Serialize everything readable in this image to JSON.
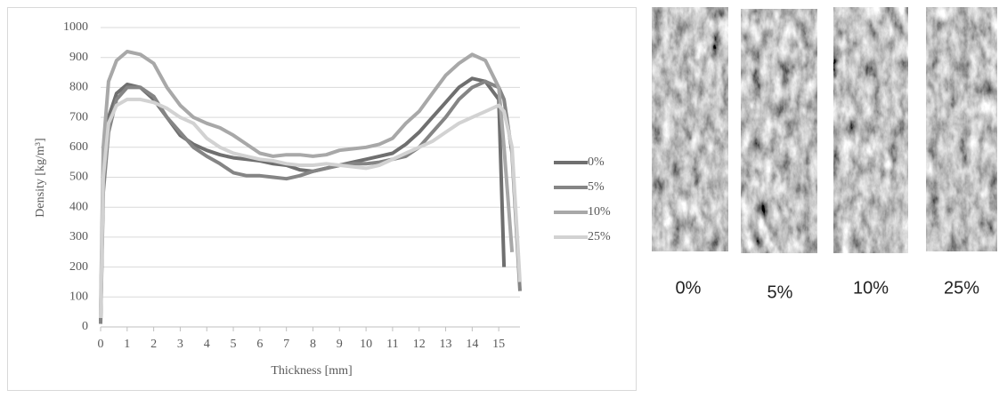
{
  "chart_data": {
    "type": "line",
    "y_label": "Density [kg/m³]",
    "x_label": "Thickness [mm]",
    "x": [
      0,
      0.1,
      0.3,
      0.6,
      1,
      1.5,
      2,
      2.5,
      3,
      3.5,
      4,
      4.5,
      5,
      5.5,
      6,
      6.5,
      7,
      7.5,
      8,
      8.5,
      9,
      9.5,
      10,
      10.5,
      11,
      11.5,
      12,
      12.5,
      13,
      13.5,
      14,
      14.5,
      15,
      15.2,
      15.5,
      15.8
    ],
    "series": [
      {
        "name": "0%",
        "color": "#6f6f6f",
        "values": [
          20,
          500,
          700,
          780,
          810,
          800,
          760,
          700,
          640,
          610,
          590,
          575,
          565,
          560,
          555,
          545,
          540,
          525,
          520,
          530,
          540,
          550,
          560,
          570,
          580,
          610,
          650,
          700,
          750,
          800,
          830,
          820,
          760,
          200,
          null,
          null
        ]
      },
      {
        "name": "5%",
        "color": "#858585",
        "values": [
          10,
          450,
          650,
          760,
          800,
          800,
          770,
          700,
          650,
          600,
          570,
          545,
          515,
          505,
          505,
          500,
          495,
          505,
          520,
          530,
          540,
          545,
          545,
          550,
          560,
          570,
          600,
          650,
          700,
          760,
          800,
          820,
          800,
          760,
          580,
          120
        ]
      },
      {
        "name": "10%",
        "color": "#a8a8a8",
        "values": [
          50,
          600,
          820,
          890,
          920,
          910,
          880,
          800,
          740,
          700,
          680,
          665,
          640,
          610,
          580,
          570,
          575,
          575,
          570,
          575,
          590,
          595,
          600,
          610,
          630,
          680,
          720,
          780,
          840,
          880,
          910,
          890,
          800,
          600,
          250,
          null
        ]
      },
      {
        "name": "25%",
        "color": "#d2d2d2",
        "values": [
          30,
          500,
          680,
          740,
          760,
          760,
          750,
          730,
          700,
          680,
          630,
          600,
          580,
          570,
          560,
          555,
          545,
          540,
          540,
          545,
          540,
          535,
          530,
          540,
          560,
          580,
          600,
          620,
          650,
          680,
          700,
          720,
          740,
          720,
          600,
          150
        ]
      }
    ],
    "xlim": [
      0,
      15.8
    ],
    "xticks": [
      0,
      1,
      2,
      3,
      4,
      5,
      6,
      7,
      8,
      9,
      10,
      11,
      12,
      13,
      14,
      15
    ],
    "ylim": [
      0,
      1000
    ],
    "yticks": [
      0,
      100,
      200,
      300,
      400,
      500,
      600,
      700,
      800,
      900,
      1000
    ],
    "grid": true,
    "legend": "right"
  },
  "photos": [
    {
      "label": "0%"
    },
    {
      "label": "5%"
    },
    {
      "label": "10%"
    },
    {
      "label": "25%"
    }
  ]
}
